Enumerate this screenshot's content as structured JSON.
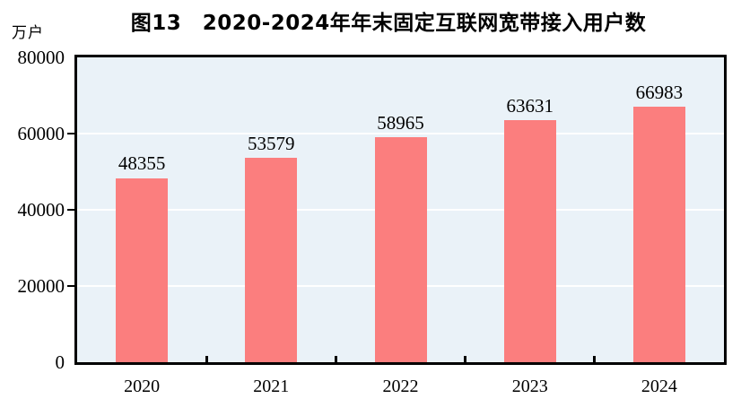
{
  "figure": {
    "title": "图13　2020-2024年年末固定互联网宽带接入用户数",
    "unit_label": "万户"
  },
  "chart_data": {
    "type": "bar",
    "title": "图13　2020-2024年年末固定互联网宽带接入用户数",
    "categories": [
      "2020",
      "2021",
      "2022",
      "2023",
      "2024"
    ],
    "values": [
      48355,
      53579,
      58965,
      63631,
      66983
    ],
    "xlabel": "",
    "ylabel": "万户",
    "ylim": [
      0,
      80000
    ],
    "yticks": [
      0,
      20000,
      40000,
      60000,
      80000
    ],
    "grid": true,
    "legend": false,
    "data_labels": true,
    "colors": {
      "bar": "#FB7E7E",
      "plot_background": "#EAF2F8",
      "gridline": "#FFFFFF",
      "axis": "#000000",
      "text": "#000000"
    }
  }
}
